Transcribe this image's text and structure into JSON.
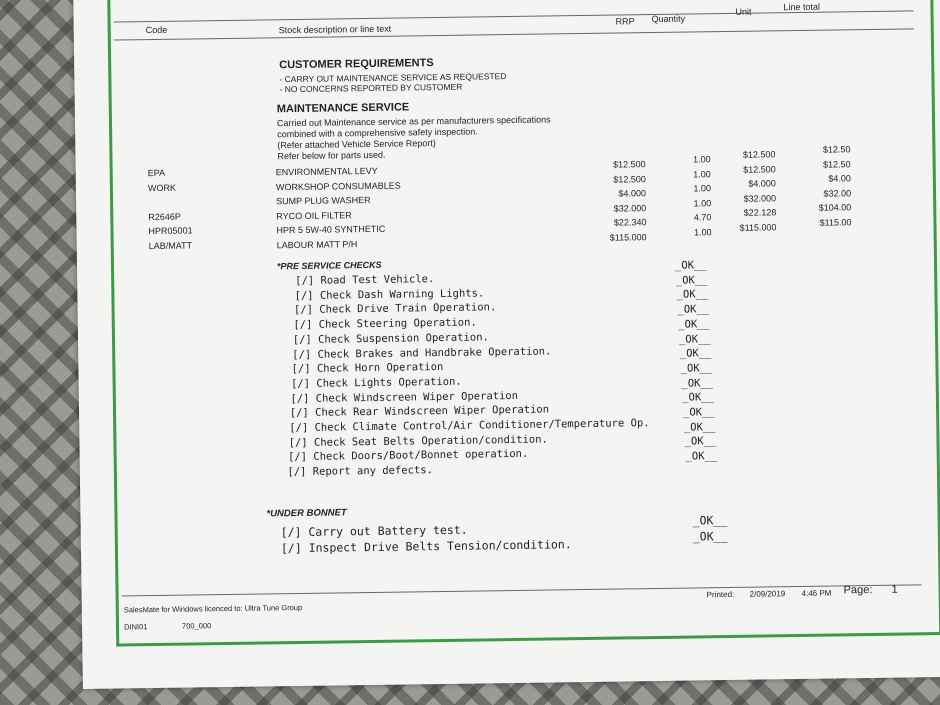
{
  "header": {
    "code": "Code",
    "description": "Stock description or line text",
    "rrp": "RRP",
    "quantity": "Quantity",
    "unit": "Unit",
    "line_total": "Line total"
  },
  "customer_requirements": {
    "title": "CUSTOMER REQUIREMENTS",
    "lines": [
      "- CARRY OUT MAINTENANCE SERVICE AS REQUESTED",
      "- NO CONCERNS REPORTED BY CUSTOMER"
    ]
  },
  "maintenance": {
    "title": "MAINTENANCE SERVICE",
    "lines": [
      "Carried out Maintenance service as per manufacturers specifications",
      "combined with a comprehensive safety inspection.",
      "(Refer attached Vehicle Service Report)",
      "Refer below for parts used."
    ]
  },
  "items": [
    {
      "code": "EPA",
      "description": "ENVIRONMENTAL LEVY",
      "rrp": "$12.500",
      "qty": "1.00",
      "unit": "$12.500",
      "total": "$12.50"
    },
    {
      "code": "WORK",
      "description": "WORKSHOP CONSUMABLES",
      "rrp": "$12.500",
      "qty": "1.00",
      "unit": "$12.500",
      "total": "$12.50"
    },
    {
      "code": "",
      "description": "SUMP PLUG WASHER",
      "rrp": "$4.000",
      "qty": "1.00",
      "unit": "$4.000",
      "total": "$4.00"
    },
    {
      "code": "R2646P",
      "description": "RYCO OIL FILTER",
      "rrp": "$32.000",
      "qty": "1.00",
      "unit": "$32.000",
      "total": "$32.00"
    },
    {
      "code": "HPR05001",
      "description": "HPR 5 5W-40 SYNTHETIC",
      "rrp": "$22.340",
      "qty": "4.70",
      "unit": "$22.128",
      "total": "$104.00"
    },
    {
      "code": "LAB/MATT",
      "description": "LABOUR MATT P/H",
      "rrp": "$115.000",
      "qty": "1.00",
      "unit": "$115.000",
      "total": "$115.00"
    }
  ],
  "pre_service": {
    "title": "*PRE SERVICE CHECKS",
    "checks": [
      {
        "text": "[/] Road Test Vehicle.",
        "status": "_OK__"
      },
      {
        "text": "[/] Check Dash Warning Lights.",
        "status": "_OK__"
      },
      {
        "text": "[/] Check Drive Train Operation.",
        "status": "_OK__"
      },
      {
        "text": "[/] Check Steering Operation.",
        "status": "_OK__"
      },
      {
        "text": "[/] Check Suspension Operation.",
        "status": "_OK__"
      },
      {
        "text": "[/] Check Brakes and Handbrake Operation.",
        "status": "_OK__"
      },
      {
        "text": "[/] Check Horn Operation",
        "status": "_OK__"
      },
      {
        "text": "[/] Check Lights Operation.",
        "status": "_OK__"
      },
      {
        "text": "[/] Check Windscreen Wiper Operation",
        "status": "_OK__"
      },
      {
        "text": "[/] Check Rear Windscreen Wiper Operation",
        "status": "_OK__"
      },
      {
        "text": "[/] Check Climate Control/Air Conditioner/Temperature Op.",
        "status": "_OK__"
      },
      {
        "text": "[/] Check Seat Belts Operation/condition.",
        "status": "_OK__"
      },
      {
        "text": "[/] Check Doors/Boot/Bonnet operation.",
        "status": "_OK__"
      },
      {
        "text": "[/] Report any defects.",
        "status": "_OK__"
      }
    ]
  },
  "under_bonnet": {
    "title": "*UNDER BONNET",
    "checks": [
      {
        "text": "[/] Carry out Battery test.",
        "status": "_OK__"
      },
      {
        "text": "[/] Inspect Drive Belts Tension/condition.",
        "status": "_OK__"
      }
    ]
  },
  "footer": {
    "licence": "SalesMate for Windows licenced to: Ultra Tune Group",
    "user": "DINI01",
    "code": "700_000",
    "printed_label": "Printed:",
    "date": "2/09/2019",
    "time": "4:46 PM",
    "page_label": "Page:",
    "page": "1"
  },
  "colors": {
    "frame": "#3f9a45",
    "paper": "#f4f4f2"
  }
}
